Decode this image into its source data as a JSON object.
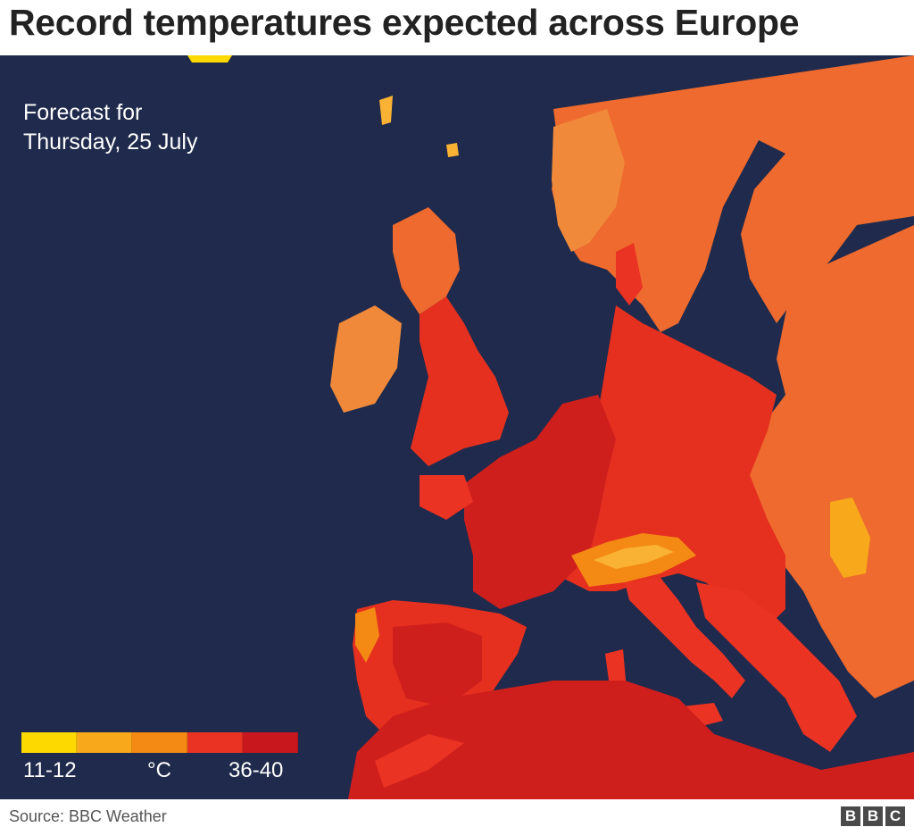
{
  "title": "Record temperatures expected across Europe",
  "forecast": {
    "line1": "Forecast for",
    "line2": "Thursday, 25 July"
  },
  "legend": {
    "min_label": "11-12",
    "unit_label": "°C",
    "max_label": "36-40",
    "colors": [
      "#fdd900",
      "#f7a81b",
      "#f48a14",
      "#ea3323",
      "#c9181d"
    ]
  },
  "colors": {
    "sea": "#1f2a4c",
    "north_land": "#ee6a2e",
    "central_land": "#e5301f",
    "hot_land": "#cf1f1d",
    "cool_land": "#f08a3a",
    "highland": "#f9b233"
  },
  "source": "Source: BBC Weather",
  "logo": {
    "letters": [
      "B",
      "B",
      "C"
    ]
  }
}
